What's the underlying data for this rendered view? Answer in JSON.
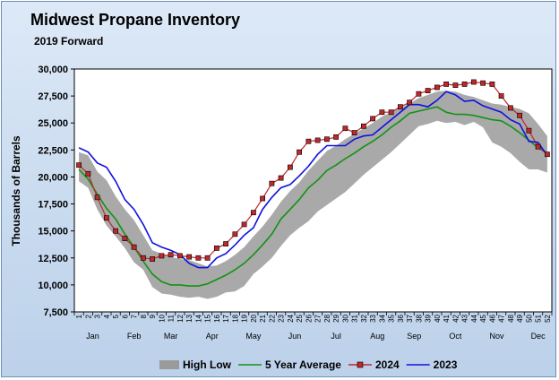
{
  "chart_data": {
    "type": "line",
    "title": "Midwest Propane Inventory",
    "subtitle": "2019 Forward",
    "ylabel": "Thousands of Barrels",
    "xlabel": "",
    "ylim": [
      7500,
      30000
    ],
    "yticks": [
      7500,
      10000,
      12500,
      15000,
      17500,
      20000,
      22500,
      25000,
      27500,
      30000
    ],
    "ytick_labels": [
      "7,500",
      "10,000",
      "12,500",
      "15,000",
      "17,500",
      "20,000",
      "22,500",
      "25,000",
      "27,500",
      "30,000"
    ],
    "weeks": [
      "1",
      "2",
      "3",
      "4",
      "5",
      "6",
      "7",
      "8",
      "9",
      "10",
      "11",
      "12",
      "13",
      "14",
      "15",
      "16",
      "17",
      "18",
      "19",
      "20",
      "21",
      "22",
      "23",
      "24",
      "25",
      "26",
      "27",
      "28",
      "29",
      "30",
      "31",
      "32",
      "33",
      "34",
      "35",
      "36",
      "37",
      "38",
      "39",
      "40",
      "41",
      "42",
      "43",
      "44",
      "45",
      "46",
      "47",
      "48",
      "49",
      "50",
      "51",
      "52"
    ],
    "months": [
      {
        "label": "Jan",
        "week": 2.5
      },
      {
        "label": "Feb",
        "week": 7
      },
      {
        "label": "Mar",
        "week": 11
      },
      {
        "label": "Apr",
        "week": 15.5
      },
      {
        "label": "May",
        "week": 20
      },
      {
        "label": "Jun",
        "week": 24.5
      },
      {
        "label": "Jul",
        "week": 29
      },
      {
        "label": "Aug",
        "week": 33.5
      },
      {
        "label": "Sep",
        "week": 37.5
      },
      {
        "label": "Oct",
        "week": 42
      },
      {
        "label": "Nov",
        "week": 46.5
      },
      {
        "label": "Dec",
        "week": 51
      }
    ],
    "legend_position": "bottom",
    "series": [
      {
        "name": "High Low",
        "kind": "band",
        "color": "#9a9a9a",
        "high": [
          22300,
          22000,
          20500,
          19700,
          18200,
          17000,
          16000,
          14600,
          13200,
          12900,
          12600,
          12400,
          12300,
          12000,
          11700,
          11800,
          12200,
          12800,
          13500,
          14500,
          15400,
          16500,
          17700,
          18700,
          19500,
          20600,
          21500,
          22400,
          22900,
          23500,
          24000,
          24500,
          25000,
          25600,
          26000,
          26400,
          26800,
          27300,
          27600,
          27900,
          28000,
          27900,
          27600,
          27400,
          27100,
          26800,
          26700,
          26500,
          26300,
          25900,
          24900,
          23800
        ],
        "low": [
          19600,
          19000,
          17000,
          15500,
          14500,
          13400,
          12100,
          11400,
          9800,
          9200,
          9100,
          8900,
          8800,
          8900,
          8700,
          8900,
          9300,
          9400,
          9900,
          11000,
          11700,
          12500,
          13600,
          14600,
          15300,
          15900,
          16800,
          17400,
          18000,
          18600,
          19400,
          20200,
          20900,
          21600,
          22300,
          23100,
          23900,
          24700,
          24900,
          25200,
          25000,
          25100,
          24800,
          25100,
          24600,
          23200,
          22800,
          22200,
          21400,
          20700,
          20700,
          20400
        ]
      },
      {
        "name": "5 Year Average",
        "color": "#129312",
        "values": [
          20700,
          19800,
          18400,
          17100,
          16100,
          14700,
          13500,
          12200,
          11000,
          10300,
          10000,
          10000,
          9900,
          9900,
          10100,
          10500,
          10900,
          11400,
          12000,
          12800,
          13700,
          14700,
          16100,
          17000,
          17900,
          19000,
          19700,
          20600,
          21100,
          21700,
          22200,
          22800,
          23300,
          23900,
          24600,
          25200,
          25900,
          26100,
          26300,
          26500,
          26000,
          25800,
          25800,
          25700,
          25500,
          25300,
          25200,
          24700,
          24100,
          23400,
          22700,
          22200
        ]
      },
      {
        "name": "2024",
        "color": "#c0282c",
        "marker": "square",
        "values": [
          21100,
          20300,
          18100,
          16200,
          15000,
          14300,
          13500,
          12500,
          12400,
          12700,
          12800,
          12700,
          12600,
          12500,
          12500,
          13400,
          13800,
          14700,
          15600,
          16700,
          18000,
          19400,
          19900,
          20900,
          22300,
          23300,
          23400,
          23500,
          23700,
          24500,
          24100,
          24700,
          25400,
          26000,
          26000,
          26500,
          26900,
          27700,
          28000,
          28300,
          28600,
          28500,
          28600,
          28800,
          28700,
          28600,
          27500,
          26400,
          25700,
          24300,
          22800,
          22100
        ]
      },
      {
        "name": "2023",
        "color": "#1111dd",
        "values": [
          22700,
          22300,
          21300,
          20900,
          19600,
          17900,
          17000,
          15600,
          13900,
          13500,
          13200,
          12800,
          12000,
          11600,
          11600,
          12500,
          12900,
          13700,
          14600,
          15300,
          17000,
          18100,
          19000,
          19300,
          20100,
          21000,
          22100,
          22900,
          22900,
          22900,
          23500,
          23800,
          23900,
          24600,
          25300,
          26000,
          26700,
          26700,
          26500,
          27100,
          27900,
          27600,
          27000,
          27100,
          26600,
          26300,
          26000,
          25300,
          24900,
          23300,
          23200,
          22000
        ]
      }
    ]
  }
}
